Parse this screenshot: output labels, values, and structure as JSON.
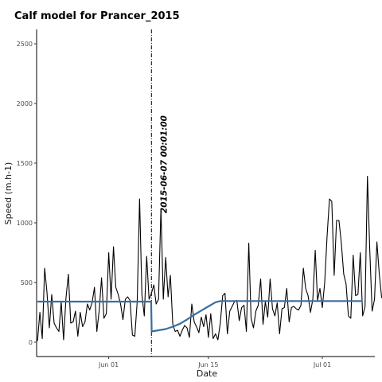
{
  "chart_data": {
    "type": "line",
    "title": "Calf model for Prancer_2015",
    "xlabel": "Date",
    "ylabel": "Speed (m.h-1)",
    "ylim": [
      -120,
      2620
    ],
    "y_ticks": [
      0,
      500,
      1000,
      1500,
      2000,
      2500
    ],
    "x_range": [
      "2015-05-21 21:00",
      "2015-07-08 09:00"
    ],
    "x_ticks": [
      {
        "label": "Jun 01",
        "date": "2015-06-01"
      },
      {
        "label": "Jun 15",
        "date": "2015-06-15"
      },
      {
        "label": "Jul 01",
        "date": "2015-07-01"
      }
    ],
    "grid": false,
    "legend": "none",
    "colors": {
      "observed": "#000000",
      "model": "#3b6e9e",
      "breakpoint": "#000000"
    },
    "annotation": {
      "text": "2015-06-07 00:01:00",
      "date": "2015-06-07 00:01"
    },
    "series": [
      {
        "role": "observed",
        "start": "2015-05-22 00:00",
        "step_hours": 8,
        "values": [
          10,
          250,
          30,
          620,
          420,
          120,
          400,
          160,
          120,
          90,
          340,
          20,
          370,
          570,
          160,
          170,
          260,
          50,
          250,
          130,
          170,
          320,
          270,
          330,
          460,
          90,
          270,
          540,
          200,
          240,
          750,
          360,
          800,
          460,
          400,
          320,
          190,
          360,
          380,
          350,
          60,
          50,
          340,
          1200,
          400,
          220,
          720,
          360,
          410,
          480,
          320,
          360,
          1120,
          360,
          710,
          380,
          560,
          150,
          90,
          100,
          50,
          100,
          140,
          120,
          40,
          320,
          170,
          130,
          80,
          210,
          130,
          230,
          40,
          240,
          30,
          70,
          20,
          160,
          390,
          410,
          70,
          260,
          300,
          340,
          350,
          180,
          290,
          310,
          90,
          830,
          200,
          120,
          260,
          310,
          530,
          150,
          340,
          210,
          530,
          280,
          220,
          330,
          70,
          280,
          290,
          450,
          170,
          290,
          300,
          280,
          270,
          310,
          620,
          450,
          390,
          250,
          360,
          770,
          350,
          450,
          290,
          500,
          890,
          1200,
          1180,
          560,
          1020,
          1020,
          830,
          570,
          490,
          220,
          200,
          730,
          390,
          400,
          750,
          220,
          300,
          1390,
          760,
          260,
          360,
          840,
          570,
          370
        ]
      },
      {
        "role": "model",
        "points": [
          {
            "date": "2015-05-22 00:00",
            "speed": 340
          },
          {
            "date": "2015-06-06 23:00",
            "speed": 340
          },
          {
            "date": "2015-06-07 01:00",
            "speed": 90
          },
          {
            "date": "2015-06-08 00:00",
            "speed": 100
          },
          {
            "date": "2015-06-09 00:00",
            "speed": 110
          },
          {
            "date": "2015-06-10 00:00",
            "speed": 130
          },
          {
            "date": "2015-06-11 00:00",
            "speed": 155
          },
          {
            "date": "2015-06-12 00:00",
            "speed": 190
          },
          {
            "date": "2015-06-13 00:00",
            "speed": 230
          },
          {
            "date": "2015-06-14 00:00",
            "speed": 265
          },
          {
            "date": "2015-06-15 00:00",
            "speed": 300
          },
          {
            "date": "2015-06-16 00:00",
            "speed": 335
          },
          {
            "date": "2015-06-16 16:00",
            "speed": 345
          },
          {
            "date": "2015-07-06 16:00",
            "speed": 345
          }
        ]
      }
    ]
  }
}
